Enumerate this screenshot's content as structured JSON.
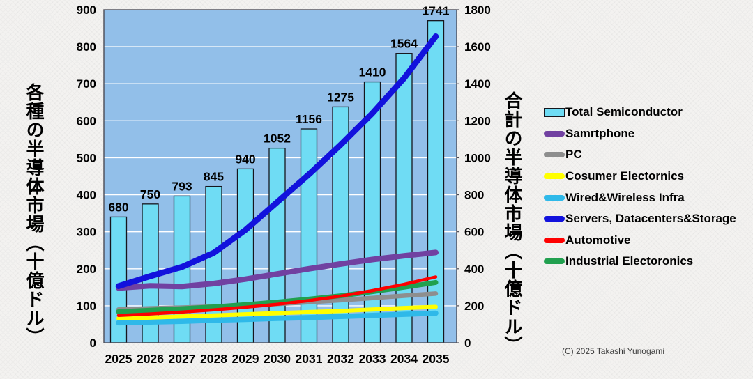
{
  "footer": {
    "copyright": "(C) 2025 Takashi Yunogami"
  },
  "chart_data": {
    "type": "combo-bar-line",
    "title": "",
    "categories": [
      "2025",
      "2026",
      "2027",
      "2028",
      "2029",
      "2030",
      "2031",
      "2032",
      "2033",
      "2034",
      "2035"
    ],
    "bar_series": {
      "name": "Total Semiconductor",
      "axis": "right",
      "values": [
        680,
        750,
        793,
        845,
        940,
        1052,
        1156,
        1275,
        1410,
        1564,
        1741
      ],
      "data_labels": [
        680,
        750,
        793,
        845,
        940,
        1052,
        1156,
        1275,
        1410,
        1564,
        1741
      ],
      "fill": "#6fdcf4",
      "stroke": "#16161d"
    },
    "line_series": [
      {
        "name": "Samrtphone",
        "color": "#7141a1",
        "width": 8,
        "axis": "left",
        "values": [
          148,
          154,
          152,
          160,
          172,
          186,
          200,
          213,
          225,
          235,
          244
        ]
      },
      {
        "name": "PC",
        "color": "#8e8e8e",
        "width": 6.5,
        "axis": "left",
        "values": [
          90,
          93,
          95,
          98,
          101,
          105,
          110,
          115,
          121,
          127,
          133
        ]
      },
      {
        "name": "Cosumer Electornics",
        "color": "#ffff00",
        "width": 6,
        "axis": "left",
        "values": [
          66,
          68,
          71,
          74,
          77,
          80,
          83,
          86,
          90,
          94,
          97
        ]
      },
      {
        "name": "Wired&Wireless Infra",
        "color": "#2fb9e9",
        "width": 7.5,
        "axis": "left",
        "values": [
          54,
          56,
          58,
          61,
          63,
          66,
          68,
          71,
          74,
          77,
          80
        ]
      },
      {
        "name": "Servers, Datacenters&Storage",
        "color": "#1212dd",
        "width": 8.5,
        "axis": "left",
        "values": [
          153,
          180,
          205,
          243,
          305,
          380,
          455,
          535,
          620,
          715,
          828
        ]
      },
      {
        "name": "Automotive",
        "color": "#fe0000",
        "width": 4.5,
        "axis": "left",
        "values": [
          74,
          78,
          83,
          89,
          96,
          104,
          114,
          126,
          141,
          158,
          178
        ]
      },
      {
        "name": "Industrial Electoronics",
        "color": "#21a04f",
        "width": 7,
        "axis": "left",
        "values": [
          84,
          88,
          92,
          97,
          103,
          110,
          118,
          127,
          138,
          150,
          163
        ]
      }
    ],
    "left_axis": {
      "title": "各種の半導体市場（十億ドル）",
      "min": 0,
      "max": 900,
      "step": 100,
      "ticks": [
        0,
        100,
        200,
        300,
        400,
        500,
        600,
        700,
        800,
        900
      ]
    },
    "right_axis": {
      "title": "合計の半導体市場（十億ドル）",
      "min": 0,
      "max": 1800,
      "step": 200,
      "ticks": [
        0,
        200,
        400,
        600,
        800,
        1000,
        1200,
        1400,
        1600,
        1800
      ]
    },
    "plot": {
      "bg": "#92bfe9",
      "grid": "#ffffff",
      "border": "#4b4b55"
    },
    "legend_position": "right",
    "grid": true
  }
}
